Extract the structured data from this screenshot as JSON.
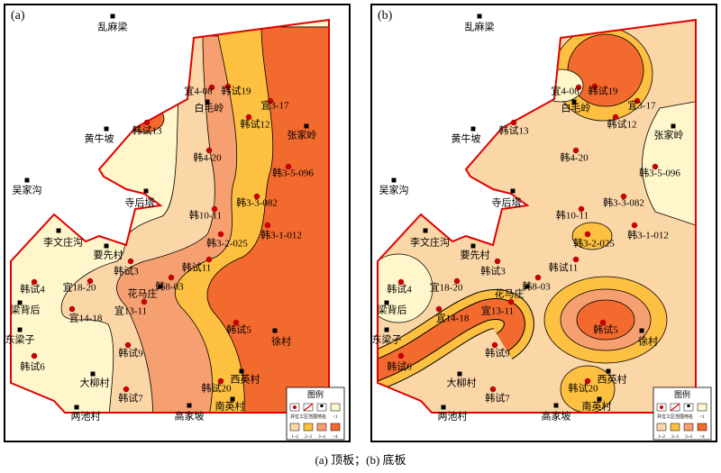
{
  "panels": [
    {
      "label": "(a)"
    },
    {
      "label": "(b)"
    }
  ],
  "places": [
    "乱麻梁",
    "黄牛坡",
    "吴家沟",
    "寺后塔",
    "李文庄沟",
    "要先村",
    "梁背后",
    "东梁子",
    "花马庄",
    "大柳村",
    "两池村",
    "高家坡",
    "南英村",
    "西英村",
    "徐村",
    "张家岭",
    "白毛岭"
  ],
  "wells": [
    "宜4-08",
    "韩试19",
    "宜3-17",
    "韩试12",
    "韩试13",
    "韩4-20",
    "韩3-5-096",
    "韩3-3-082",
    "韩10-11",
    "韩3-1-012",
    "韩3-2-025",
    "韩试11",
    "韩试3",
    "韩8-03",
    "宜18-20",
    "韩试4",
    "宜14-18",
    "宜13-11",
    "韩试5",
    "韩试9",
    "韩试6",
    "韩试7",
    "韩试20"
  ],
  "legend": {
    "title": "图例",
    "items": [
      "井位",
      "工区范围",
      "地名",
      "<1",
      "1~2",
      "2~3",
      "3~4",
      ">4"
    ]
  },
  "caption": "(a) 顶板；(b) 底板"
}
